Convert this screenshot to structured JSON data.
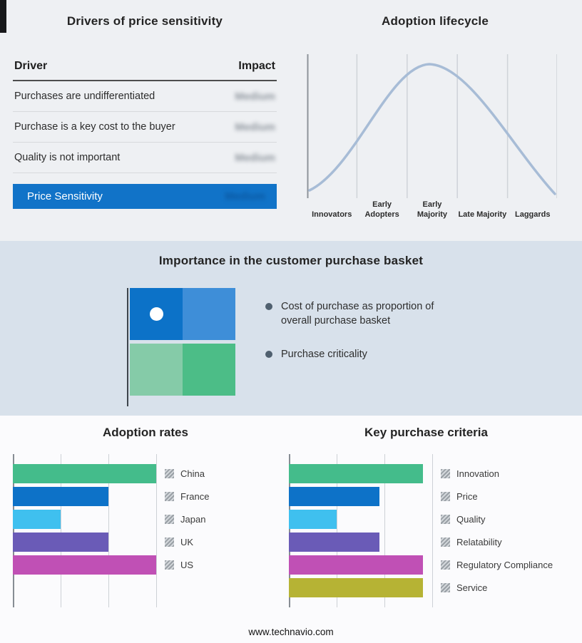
{
  "drivers_panel": {
    "title": "Drivers of price sensitivity",
    "columns": {
      "driver": "Driver",
      "impact": "Impact"
    },
    "rows": [
      {
        "driver": "Purchases are undifferentiated",
        "impact": "Medium"
      },
      {
        "driver": "Purchase is a key cost to the buyer",
        "impact": "Medium"
      },
      {
        "driver": "Quality is not important",
        "impact": "Medium"
      }
    ],
    "highlight": {
      "label": "Price Sensitivity",
      "impact": "Medium",
      "bg": "#1173c8"
    }
  },
  "basket_panel": {
    "title": "Importance in the customer purchase basket",
    "bullets": [
      "Cost of purchase as proportion of overall purchase basket",
      "Purchase criticality"
    ],
    "quadrants": [
      {
        "name": "top-left",
        "color": "#0c72c8"
      },
      {
        "name": "top-right",
        "color": "#3e8ed8"
      },
      {
        "name": "bottom-left",
        "color": "#85cba8"
      },
      {
        "name": "bottom-right",
        "color": "#4cbd87"
      }
    ]
  },
  "footer": {
    "url": "www.technavio.com"
  },
  "chart_data": [
    {
      "type": "line",
      "title": "Adoption lifecycle",
      "categories": [
        "Innovators",
        "Early Adopters",
        "Early Majority",
        "Late Majority",
        "Laggards"
      ],
      "relative_heights": [
        0.1,
        0.55,
        1.0,
        0.55,
        0.1
      ],
      "curve_color": "#a7bcd6",
      "grid": "vertical stage dividers, no numeric axes"
    },
    {
      "type": "bar",
      "orientation": "horizontal",
      "title": "Adoption rates",
      "categories": [
        "China",
        "France",
        "Japan",
        "UK",
        "US"
      ],
      "values": [
        3,
        2,
        1,
        2,
        3
      ],
      "xmax": 3,
      "units": "relative (no axis tick labels shown)",
      "colors": [
        "#44bc8b",
        "#0d72c8",
        "#3fc0ef",
        "#6a5bb7",
        "#c050b5"
      ],
      "legend_position": "right"
    },
    {
      "type": "bar",
      "orientation": "horizontal",
      "title": "Key purchase criteria",
      "categories": [
        "Innovation",
        "Price",
        "Quality",
        "Relatability",
        "Regulatory Compliance",
        "Service"
      ],
      "values": [
        2.8,
        1.9,
        1.0,
        1.9,
        2.8,
        2.8
      ],
      "xmax": 3,
      "units": "relative (no axis tick labels shown)",
      "colors": [
        "#44bc8b",
        "#0d72c8",
        "#3fc0ef",
        "#6a5bb7",
        "#c050b5",
        "#b6b334"
      ],
      "legend_position": "right"
    }
  ]
}
